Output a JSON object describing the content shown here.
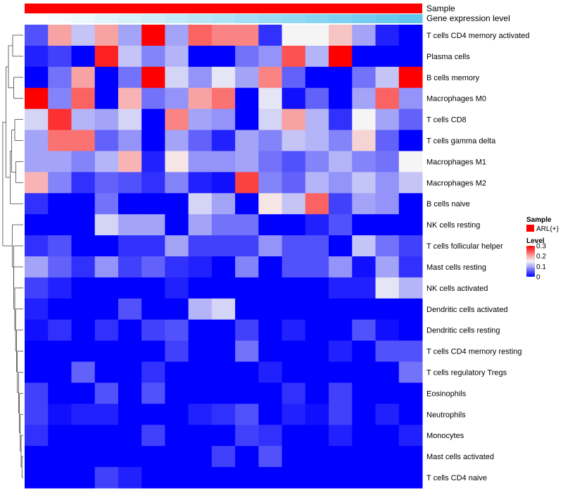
{
  "chart_data": {
    "type": "heatmap",
    "annotations": {
      "sample": {
        "label": "Sample",
        "legend_title": "Sample",
        "legend_entry": "ARL(+)",
        "color": "#ff0000"
      },
      "expression": {
        "label": "Gene expression level"
      }
    },
    "row_labels": [
      "T cells CD4 memory activated",
      "Plasma cells",
      "B cells memory",
      "Macrophages M0",
      "T cells CD8",
      "T cells gamma delta",
      "Macrophages M1",
      "Macrophages M2",
      "B cells naive",
      "NK cells resting",
      "T cells follicular helper",
      "Mast cells resting",
      "NK cells activated",
      "Dendritic cells activated",
      "Dendritic cells resting",
      "T cells CD4 memory resting",
      "T cells regulatory  Tregs",
      "Eosinophils",
      "Neutrophils",
      "Monocytes",
      "Mast cells activated",
      "T cells CD4 naive"
    ],
    "values": [
      [
        0.05,
        0.2,
        0.12,
        0.2,
        0.1,
        0.3,
        0.1,
        0.24,
        0.22,
        0.22,
        0.03,
        0.15,
        0.15,
        0.18,
        0.1,
        0.02,
        0.0
      ],
      [
        0.02,
        0.04,
        0.0,
        0.28,
        0.12,
        0.08,
        0.11,
        0.0,
        0.0,
        0.07,
        0.09,
        0.25,
        0.11,
        0.3,
        0.0,
        0.0,
        0.0
      ],
      [
        0.0,
        0.07,
        0.2,
        0.0,
        0.07,
        0.3,
        0.13,
        0.09,
        0.14,
        0.1,
        0.22,
        0.06,
        0.0,
        0.0,
        0.07,
        0.12,
        0.3
      ],
      [
        0.3,
        0.08,
        0.24,
        0.0,
        0.19,
        0.07,
        0.09,
        0.2,
        0.23,
        0.0,
        0.14,
        0.01,
        0.06,
        0.0,
        0.1,
        0.24,
        0.09
      ],
      [
        0.13,
        0.27,
        0.11,
        0.1,
        0.13,
        0.0,
        0.22,
        0.1,
        0.09,
        0.0,
        0.13,
        0.2,
        0.11,
        0.03,
        0.15,
        0.1,
        0.06
      ],
      [
        0.1,
        0.23,
        0.23,
        0.06,
        0.09,
        0.0,
        0.1,
        0.06,
        0.02,
        0.1,
        0.08,
        0.12,
        0.11,
        0.08,
        0.17,
        0.06,
        0.0
      ],
      [
        0.1,
        0.1,
        0.08,
        0.11,
        0.19,
        0.02,
        0.16,
        0.09,
        0.09,
        0.1,
        0.07,
        0.05,
        0.08,
        0.11,
        0.08,
        0.07,
        0.15
      ],
      [
        0.19,
        0.08,
        0.03,
        0.06,
        0.05,
        0.03,
        0.08,
        0.02,
        0.01,
        0.26,
        0.08,
        0.06,
        0.11,
        0.09,
        0.12,
        0.09,
        0.12
      ],
      [
        0.03,
        0.0,
        0.0,
        0.07,
        0.0,
        0.0,
        0.0,
        0.13,
        0.1,
        0.0,
        0.16,
        0.12,
        0.24,
        0.04,
        0.1,
        0.09,
        0.0
      ],
      [
        0.0,
        0.0,
        0.0,
        0.13,
        0.1,
        0.1,
        0.0,
        0.1,
        0.07,
        0.07,
        0.0,
        0.0,
        0.02,
        0.05,
        0.0,
        0.0,
        0.0
      ],
      [
        0.03,
        0.05,
        0.0,
        0.0,
        0.03,
        0.03,
        0.1,
        0.04,
        0.04,
        0.04,
        0.09,
        0.05,
        0.05,
        0.0,
        0.12,
        0.07,
        0.04
      ],
      [
        0.1,
        0.06,
        0.03,
        0.09,
        0.04,
        0.06,
        0.03,
        0.02,
        0.0,
        0.08,
        0.0,
        0.05,
        0.05,
        0.09,
        0.01,
        0.1,
        0.03
      ],
      [
        0.04,
        0.02,
        0.0,
        0.0,
        0.0,
        0.0,
        0.02,
        0.0,
        0.0,
        0.0,
        0.0,
        0.0,
        0.0,
        0.02,
        0.02,
        0.14,
        0.11
      ],
      [
        0.02,
        0.0,
        0.0,
        0.0,
        0.05,
        0.0,
        0.0,
        0.11,
        0.13,
        0.0,
        0.0,
        0.0,
        0.0,
        0.0,
        0.0,
        0.0,
        0.0
      ],
      [
        0.01,
        0.03,
        0.0,
        0.03,
        0.0,
        0.04,
        0.05,
        0.0,
        0.0,
        0.04,
        0.0,
        0.02,
        0.0,
        0.0,
        0.05,
        0.01,
        0.0
      ],
      [
        0.0,
        0.0,
        0.0,
        0.0,
        0.0,
        0.0,
        0.04,
        0.0,
        0.0,
        0.07,
        0.0,
        0.0,
        0.0,
        0.02,
        0.0,
        0.05,
        0.05
      ],
      [
        0.0,
        0.0,
        0.06,
        0.0,
        0.0,
        0.03,
        0.0,
        0.0,
        0.0,
        0.0,
        0.02,
        0.0,
        0.0,
        0.0,
        0.0,
        0.0,
        0.07
      ],
      [
        0.04,
        0.0,
        0.0,
        0.05,
        0.0,
        0.05,
        0.0,
        0.0,
        0.0,
        0.0,
        0.0,
        0.03,
        0.0,
        0.04,
        0.0,
        0.0,
        0.0
      ],
      [
        0.04,
        0.01,
        0.02,
        0.02,
        0.0,
        0.0,
        0.0,
        0.02,
        0.03,
        0.05,
        0.0,
        0.02,
        0.01,
        0.04,
        0.0,
        0.02,
        0.0
      ],
      [
        0.03,
        0.0,
        0.0,
        0.0,
        0.0,
        0.04,
        0.0,
        0.0,
        0.0,
        0.04,
        0.03,
        0.0,
        0.0,
        0.02,
        0.0,
        0.0,
        0.02
      ],
      [
        0.0,
        0.0,
        0.0,
        0.0,
        0.0,
        0.0,
        0.0,
        0.0,
        0.04,
        0.0,
        0.05,
        0.0,
        0.0,
        0.0,
        0.0,
        0.0,
        0.0
      ],
      [
        0.0,
        0.0,
        0.0,
        0.04,
        0.02,
        0.0,
        0.0,
        0.0,
        0.0,
        0.0,
        0.0,
        0.0,
        0.0,
        0.0,
        0.0,
        0.0,
        0.0
      ]
    ],
    "column_expression_level": [
      0.0,
      0.06,
      0.12,
      0.18,
      0.24,
      0.3,
      0.36,
      0.42,
      0.48,
      0.54,
      0.6,
      0.66,
      0.72,
      0.78,
      0.84,
      0.9,
      0.96
    ],
    "color_scale": {
      "min": 0,
      "mid": 0.15,
      "max": 0.3,
      "low": "#0000ff",
      "midColor": "#f5f5f5",
      "high": "#ff0000"
    },
    "legend": {
      "title": "Level",
      "ticks": [
        {
          "value": 0.3,
          "label": "0.3"
        },
        {
          "value": 0.2,
          "label": "0.2"
        },
        {
          "value": 0.1,
          "label": "0.1"
        },
        {
          "value": 0,
          "label": "0"
        }
      ]
    },
    "dendrogram": [
      {
        "row": 0,
        "merge_height": 0.95
      },
      {
        "row": 1,
        "merge_height": 0.95
      },
      {
        "row": 2,
        "merge_height": 0.82
      },
      {
        "row": 3,
        "merge_height": 0.82
      },
      {
        "row": 4,
        "merge_height": 0.72
      },
      {
        "row": 5,
        "merge_height": 0.72
      },
      {
        "row": 6,
        "merge_height": 0.66
      },
      {
        "row": 7,
        "merge_height": 0.66
      },
      {
        "row": 8,
        "merge_height": 0.6
      },
      {
        "row": 9,
        "merge_height": 0.52
      },
      {
        "row": 10,
        "merge_height": 0.45
      },
      {
        "row": 11,
        "merge_height": 0.45
      },
      {
        "row": 12,
        "merge_height": 0.4
      },
      {
        "row": 13,
        "merge_height": 0.36
      },
      {
        "row": 14,
        "merge_height": 0.32
      },
      {
        "row": 15,
        "merge_height": 0.28
      },
      {
        "row": 16,
        "merge_height": 0.22
      },
      {
        "row": 17,
        "merge_height": 0.18
      },
      {
        "row": 18,
        "merge_height": 0.14
      },
      {
        "row": 19,
        "merge_height": 0.1
      },
      {
        "row": 20,
        "merge_height": 0.06
      },
      {
        "row": 21,
        "merge_height": 0.06
      }
    ]
  }
}
